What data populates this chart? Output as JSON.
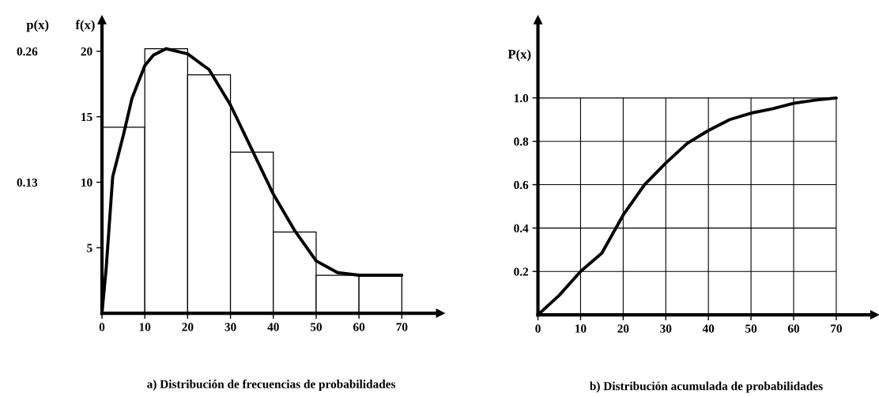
{
  "chart_data": [
    {
      "type": "histogram",
      "title": "a) Distribución de frecuencias de probabilidades",
      "ylabel": "f(x)",
      "y2label": "p(x)",
      "bins": [
        0,
        10,
        20,
        30,
        40,
        50,
        60,
        70
      ],
      "values": [
        14.2,
        20.2,
        18.2,
        12.3,
        6.2,
        2.9,
        2.9
      ],
      "color": "#ffffff",
      "series": [
        {
          "type": "line",
          "color": "#000000",
          "x": [
            0,
            1,
            2.5,
            5,
            7,
            10,
            12,
            15,
            20,
            25,
            30,
            35,
            40,
            45,
            50,
            55,
            60,
            70
          ],
          "values": [
            0,
            3.5,
            10.4,
            13.6,
            16.4,
            18.9,
            19.7,
            20.2,
            19.8,
            18.6,
            15.9,
            12.5,
            9.1,
            6.3,
            4.0,
            3.1,
            2.9,
            2.9
          ]
        }
      ],
      "xlim": [
        0,
        79
      ],
      "xticks": [
        0,
        10,
        20,
        30,
        40,
        50,
        60,
        70
      ],
      "ylim": [
        0,
        22.4
      ],
      "yticks": [
        5,
        10,
        15,
        20
      ],
      "y2lim": [
        0,
        0.2912
      ],
      "y2ticks": [
        0.13,
        0.26
      ],
      "grid": false
    },
    {
      "type": "line",
      "title": "b) Distribución acumulada de probabilidades",
      "ylabel": "P(x)",
      "x": [
        0,
        5,
        10,
        15,
        20,
        25,
        30,
        35,
        40,
        45,
        50,
        55,
        60,
        65,
        70
      ],
      "series": [
        {
          "color": "#000000",
          "values": [
            0,
            0.09,
            0.2,
            0.285,
            0.46,
            0.6,
            0.7,
            0.79,
            0.85,
            0.9,
            0.93,
            0.95,
            0.975,
            0.99,
            1.0
          ]
        }
      ],
      "xlim": [
        0,
        79
      ],
      "xticks": [
        0,
        10,
        20,
        30,
        40,
        50,
        60,
        70
      ],
      "ylim": [
        0,
        1.36
      ],
      "yticks": [
        0.2,
        0.4,
        0.6,
        0.8,
        {
          "value": 1.0,
          "label": "1.0"
        }
      ],
      "grid": true
    }
  ]
}
